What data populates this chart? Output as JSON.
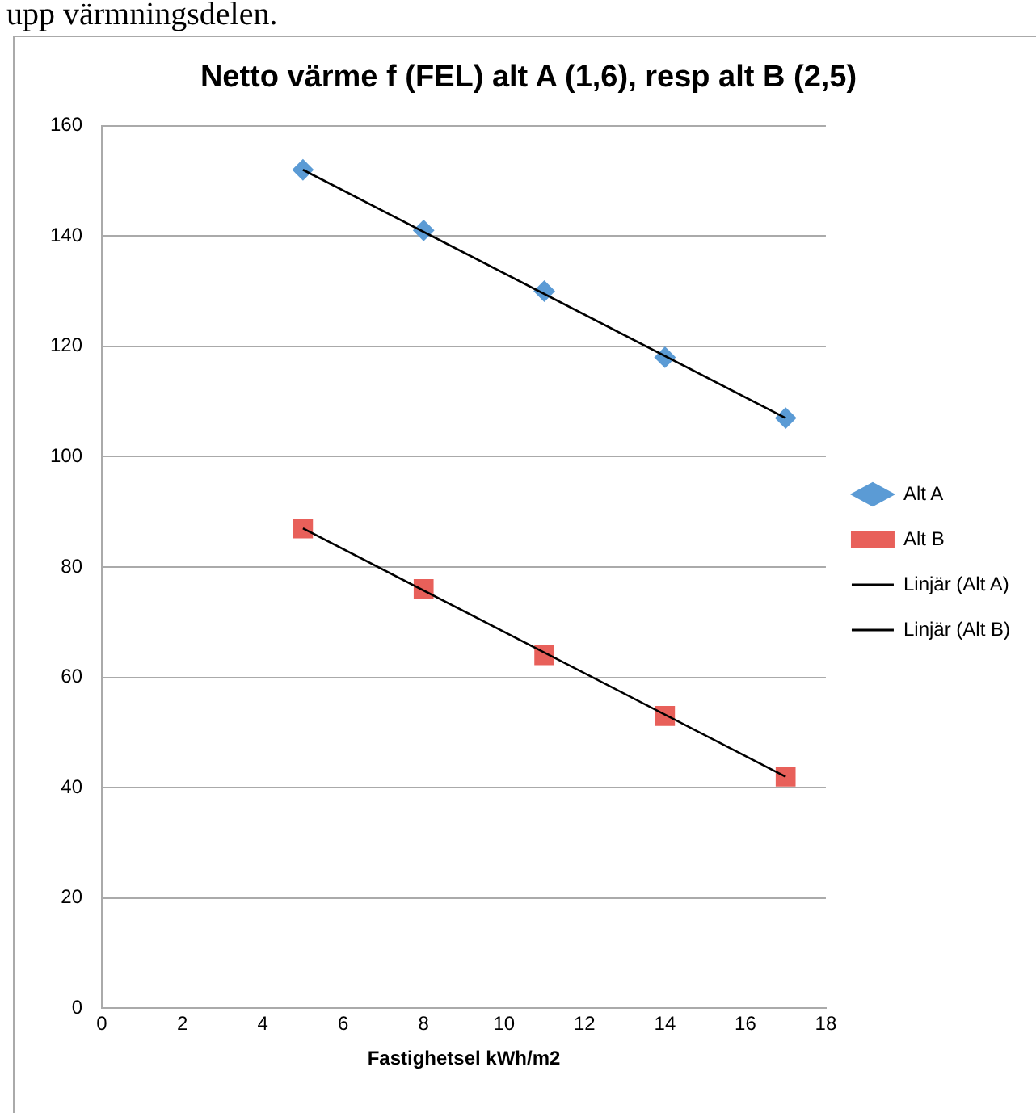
{
  "chart_data": {
    "type": "scatter",
    "title": "Netto värme f (FEL) alt A (1,6), resp alt B (2,5)",
    "xlabel": "Fastighetsel kWh/m2",
    "annotations": [
      "upp värmningsdelen."
    ],
    "xlim": [
      0,
      18
    ],
    "xticks": [
      0,
      2,
      4,
      6,
      8,
      10,
      12,
      14,
      16,
      18
    ],
    "ylim": [
      0,
      160
    ],
    "yticks": [
      0,
      20,
      40,
      60,
      80,
      100,
      120,
      140,
      160
    ],
    "grid": "y",
    "legend": "right",
    "series": [
      {
        "name": "Alt A",
        "type": "scatter",
        "marker": "diamond",
        "color": "#5b9bd5",
        "x": [
          5,
          8,
          11,
          14,
          17
        ],
        "values": [
          152,
          141,
          130,
          118,
          107
        ]
      },
      {
        "name": "Alt B",
        "type": "scatter",
        "marker": "square",
        "color": "#e8605a",
        "x": [
          5,
          8,
          11,
          14,
          17
        ],
        "values": [
          87,
          76,
          64,
          53,
          42
        ]
      },
      {
        "name": "Linjär (Alt A)",
        "type": "line",
        "marker": "none",
        "line_style": "solid",
        "color": "#000000",
        "x": [
          5,
          17
        ],
        "values": [
          152,
          107
        ]
      },
      {
        "name": "Linjär (Alt B)",
        "type": "line",
        "marker": "none",
        "line_style": "solid",
        "color": "#000000",
        "x": [
          5,
          17
        ],
        "values": [
          87,
          42
        ]
      }
    ]
  }
}
